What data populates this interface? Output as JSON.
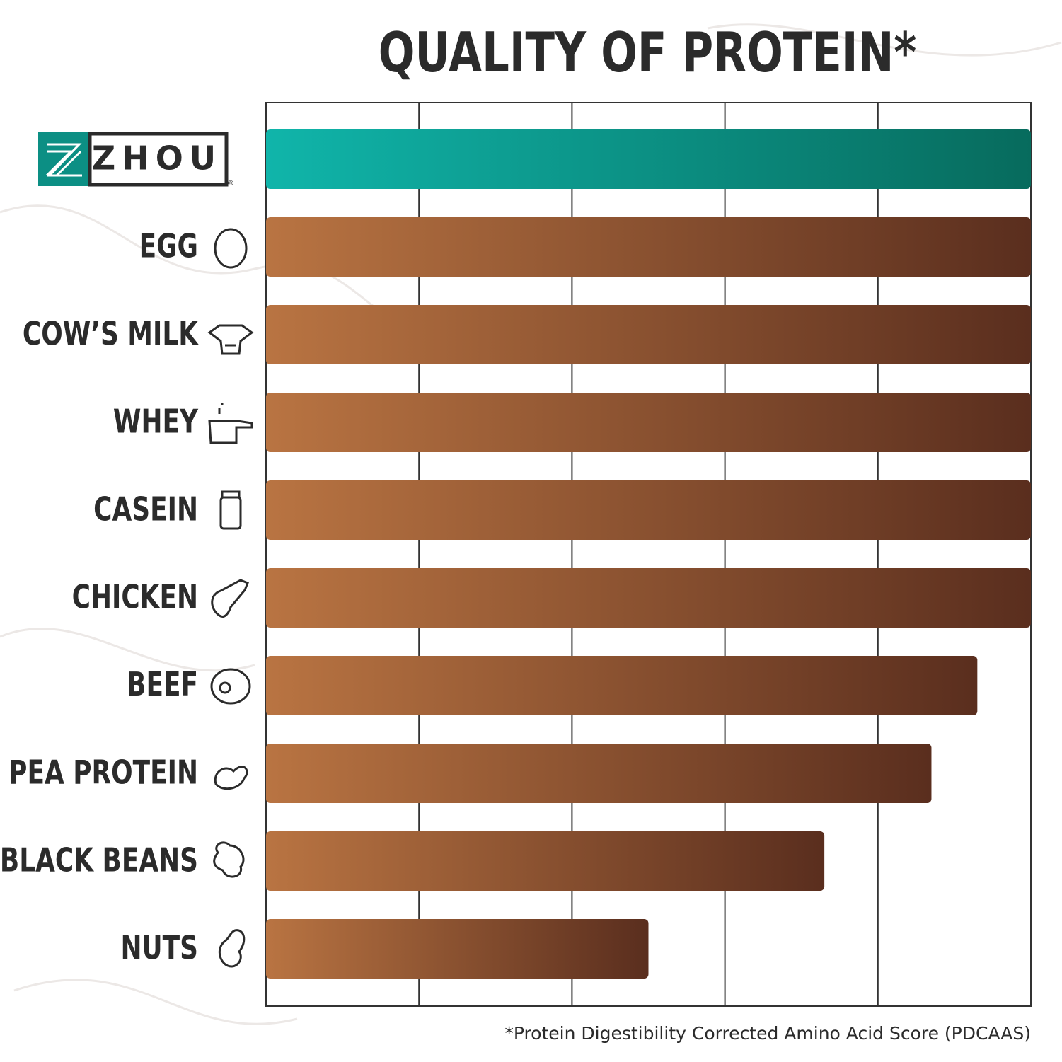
{
  "chart_data": {
    "type": "bar",
    "orientation": "horizontal",
    "title": "QUALITY OF PROTEIN*",
    "footnote": "*Protein Digestibility Corrected Amino Acid Score (PDCAAS)",
    "categories": [
      "ZHOU",
      "EGG",
      "COW’S MILK",
      "WHEY",
      "CASEIN",
      "CHICKEN",
      "BEEF",
      "PEA PROTEIN",
      "BLACK BEANS",
      "NUTS"
    ],
    "logo_mark": "®",
    "values": [
      1,
      1,
      1,
      1,
      1,
      1,
      0.93,
      0.87,
      0.73,
      0.5
    ],
    "gradients": [
      [
        "#10b5aa",
        "#076b5d"
      ],
      [
        "#b97442",
        "#5a2e1e"
      ],
      [
        "#b97442",
        "#5a2e1e"
      ],
      [
        "#b97442",
        "#5a2e1e"
      ],
      [
        "#b97442",
        "#5a2e1e"
      ],
      [
        "#b97442",
        "#5a2e1e"
      ],
      [
        "#b97442",
        "#5a2e1e"
      ],
      [
        "#b97442",
        "#5a2e1e"
      ],
      [
        "#b97442",
        "#5a2e1e"
      ],
      [
        "#b97442",
        "#5a2e1e"
      ]
    ],
    "xlim": [
      0,
      1
    ],
    "xticks": [
      0,
      0.2,
      0.4,
      0.6,
      0.8,
      1
    ],
    "grid": true
  }
}
